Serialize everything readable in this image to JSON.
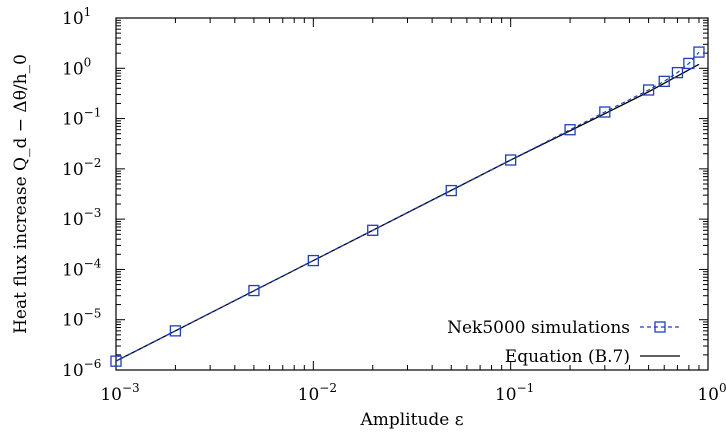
{
  "chart_data": {
    "type": "scatter",
    "xlabel": "Amplitude ε",
    "ylabel": "Heat flux increase Q_d − Δθ/h_0",
    "x_scale": "log",
    "y_scale": "log",
    "xlim": [
      0.001,
      1
    ],
    "ylim": [
      1e-06,
      10
    ],
    "x_ticks": [
      0.001,
      0.01,
      0.1,
      1
    ],
    "x_tick_labels": [
      {
        "base": "10",
        "exp": "−3"
      },
      {
        "base": "10",
        "exp": "−2"
      },
      {
        "base": "10",
        "exp": "−1"
      },
      {
        "base": "10",
        "exp": "0"
      }
    ],
    "y_ticks": [
      1e-06,
      1e-05,
      0.0001,
      0.001,
      0.01,
      0.1,
      1,
      10
    ],
    "y_tick_labels": [
      {
        "base": "10",
        "exp": "−6"
      },
      {
        "base": "10",
        "exp": "−5"
      },
      {
        "base": "10",
        "exp": "−4"
      },
      {
        "base": "10",
        "exp": "−3"
      },
      {
        "base": "10",
        "exp": "−2"
      },
      {
        "base": "10",
        "exp": "−1"
      },
      {
        "base": "10",
        "exp": "0"
      },
      {
        "base": "10",
        "exp": "1"
      }
    ],
    "grid": false,
    "legend_position": "bottom-right",
    "series": [
      {
        "name": "Nek5000 simulations",
        "style": "dashed-line-square-markers",
        "color": "#1f3fbf",
        "x": [
          0.001,
          0.002,
          0.005,
          0.01,
          0.02,
          0.05,
          0.1,
          0.2,
          0.3,
          0.5,
          0.6,
          0.7,
          0.8,
          0.9
        ],
        "y": [
          1.5e-06,
          6e-06,
          3.8e-05,
          0.00015,
          0.0006,
          0.0037,
          0.015,
          0.06,
          0.135,
          0.37,
          0.55,
          0.82,
          1.25,
          2.1
        ]
      },
      {
        "name": "Equation (B.7)",
        "style": "solid-line",
        "color": "#000000",
        "x": [
          0.001,
          0.01,
          0.1,
          0.3,
          0.5,
          0.7,
          0.9
        ],
        "y": [
          1.5e-06,
          0.00015,
          0.015,
          0.125,
          0.34,
          0.7,
          1.2
        ]
      }
    ]
  }
}
